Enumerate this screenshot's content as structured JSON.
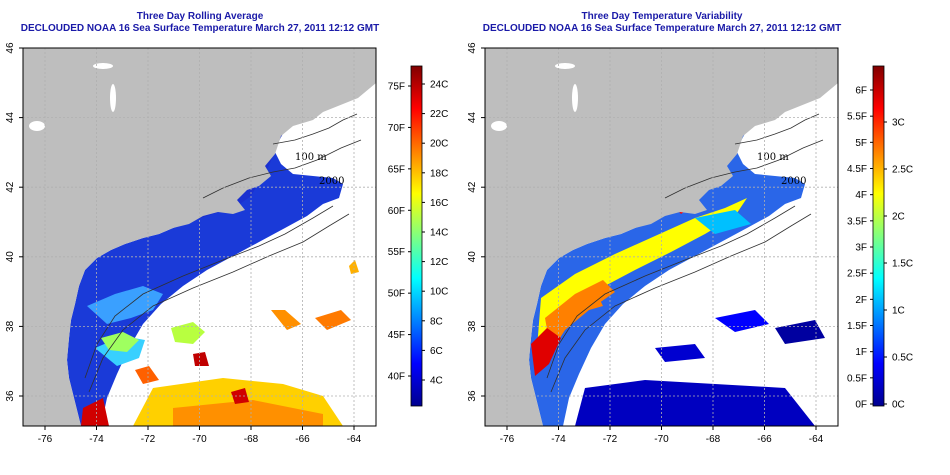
{
  "panels": [
    {
      "title": "Three Day Rolling Average",
      "subtitle": "DECLOUDED NOAA 16 Sea Surface Temperature March 27, 2011 12:12 GMT",
      "lon_ticks": [
        "-76",
        "-74",
        "-72",
        "-70",
        "-68",
        "-66",
        "-64"
      ],
      "lat_ticks": [
        "36",
        "38",
        "40",
        "42",
        "44",
        "46"
      ],
      "colorbar": {
        "scale": "temperature",
        "fahrenheit_labels": [
          "40F",
          "45F",
          "50F",
          "55F",
          "60F",
          "65F",
          "70F",
          "75F"
        ],
        "celsius_labels": [
          "4C",
          "6C",
          "8C",
          "10C",
          "12C",
          "14C",
          "16C",
          "18C",
          "20C",
          "22C",
          "24C"
        ],
        "colors": [
          "#00008f",
          "#0000ff",
          "#0080ff",
          "#00ffff",
          "#80ff80",
          "#ffff00",
          "#ff8000",
          "#ff0000",
          "#800000"
        ]
      },
      "isobath_labels": [
        "100 m",
        "2000"
      ],
      "colors": {
        "land": "#bebebe",
        "water": "#ffffff",
        "shelf": "#1a3ad8",
        "outline": "#000000"
      }
    },
    {
      "title": "Three Day Temperature Variability",
      "subtitle": "DECLOUDED NOAA 16 Sea Surface Temperature March 27, 2011 12:12 GMT",
      "lon_ticks": [
        "-76",
        "-74",
        "-72",
        "-70",
        "-68",
        "-66",
        "-64"
      ],
      "lat_ticks": [
        "36",
        "38",
        "40",
        "42",
        "44",
        "46"
      ],
      "colorbar": {
        "scale": "variability",
        "fahrenheit_labels": [
          "0F",
          "0.5F",
          "1F",
          "1.5F",
          "2F",
          "2.5F",
          "3F",
          "3.5F",
          "4F",
          "4.5F",
          "5F",
          "5.5F",
          "6F"
        ],
        "celsius_labels": [
          "0C",
          "0.5C",
          "1C",
          "1.5C",
          "2C",
          "2.5C",
          "3C"
        ],
        "colors": [
          "#00008f",
          "#0000ff",
          "#0080ff",
          "#00ffff",
          "#80ff80",
          "#ffff00",
          "#ff8000",
          "#ff0000",
          "#800000"
        ]
      },
      "isobath_labels": [
        "100 m",
        "2000"
      ],
      "colors": {
        "land": "#bebebe",
        "water": "#ffffff",
        "shelf": "#2a66e8",
        "outline": "#000000"
      }
    }
  ]
}
